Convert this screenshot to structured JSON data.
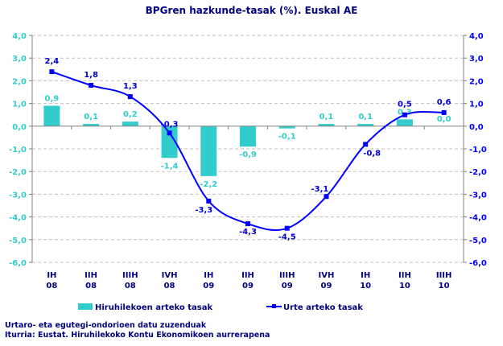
{
  "chart_data": {
    "type": "bar+line",
    "title": "BPGren hazkunde-tasak (%). Euskal AE",
    "categories": [
      [
        "IH",
        "08"
      ],
      [
        "IIH",
        "08"
      ],
      [
        "IIIH",
        "08"
      ],
      [
        "IVH",
        "08"
      ],
      [
        "IH",
        "09"
      ],
      [
        "IIH",
        "09"
      ],
      [
        "IIIH",
        "09"
      ],
      [
        "IVH",
        "09"
      ],
      [
        "IH",
        "10"
      ],
      [
        "IIH",
        "10"
      ],
      [
        "IIIH",
        "10"
      ]
    ],
    "series": [
      {
        "name": "Hiruhilekoen arteko tasak",
        "type": "bar",
        "color": "#33CCCC",
        "axis": "left",
        "values": [
          0.9,
          0.1,
          0.2,
          -1.4,
          -2.2,
          -0.9,
          -0.1,
          0.1,
          0.1,
          0.3,
          0.0
        ],
        "labels": [
          "0,9",
          "0,1",
          "0,2",
          "-1,4",
          "-2,2",
          "-0,9",
          "-0,1",
          "0,1",
          "0,1",
          "0,3",
          "0,0"
        ]
      },
      {
        "name": "Urte arteko tasak",
        "type": "line",
        "color": "#0000FF",
        "axis": "right",
        "values": [
          2.4,
          1.8,
          1.3,
          -0.3,
          -3.3,
          -4.3,
          -4.5,
          -3.1,
          -0.8,
          0.5,
          0.6
        ],
        "labels": [
          "2,4",
          "1,8",
          "1,3",
          "-0,3",
          "-3,3",
          "-4,3",
          "-4,5",
          "-3,1",
          "-0,8",
          "0,5",
          "0,6"
        ]
      }
    ],
    "ylim": [
      -6,
      4
    ],
    "yticks": [
      "4,0",
      "3,0",
      "2,0",
      "1,0",
      "0,0",
      "-1,0",
      "-2,0",
      "-3,0",
      "-4,0",
      "-5,0",
      "-6,0"
    ],
    "left_axis_color": "#33CCCC",
    "right_axis_color": "#0000FF",
    "grid": true,
    "legend": "bottom"
  },
  "notes": [
    "Urtaro- eta egutegi-ondorioen datu zuzenduak",
    "Iturria: Eustat. Hiruhilekoko Kontu Ekonomikoen aurrerapena"
  ]
}
